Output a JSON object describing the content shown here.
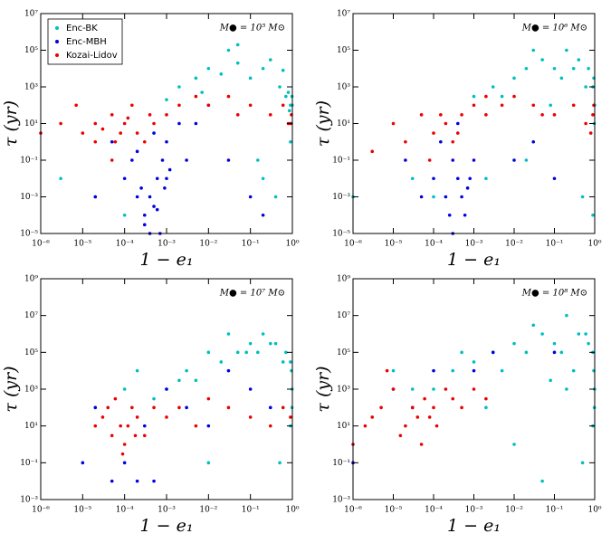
{
  "chart_data": [
    {
      "type": "scatter",
      "annotation": "M● = 10⁵ M⊙",
      "xlabel": "1 − e₁",
      "ylabel": "τ (yr)",
      "legend": "upper left",
      "xlim": [
        1e-06,
        1
      ],
      "ylim": [
        1e-05,
        10000000.0
      ],
      "xticks": [
        {
          "value": 1e-06,
          "label": "10⁻⁶"
        },
        {
          "value": 1e-05,
          "label": "10⁻⁵"
        },
        {
          "value": 0.0001,
          "label": "10⁻⁴"
        },
        {
          "value": 0.001,
          "label": "10⁻³"
        },
        {
          "value": 0.01,
          "label": "10⁻²"
        },
        {
          "value": 0.1,
          "label": "10⁻¹"
        },
        {
          "value": 1,
          "label": "10⁰"
        }
      ],
      "yticks": [
        {
          "value": 1e-05,
          "label": "10⁻⁵"
        },
        {
          "value": 0.001,
          "label": "10⁻³"
        },
        {
          "value": 0.1,
          "label": "10⁻¹"
        },
        {
          "value": 10,
          "label": "10¹"
        },
        {
          "value": 1000,
          "label": "10³"
        },
        {
          "value": 100000.0,
          "label": "10⁵"
        },
        {
          "value": 10000000.0,
          "label": "10⁷"
        }
      ],
      "series": [
        {
          "name": "Enc-BK",
          "color": "#00bfbf",
          "x": [
            0.002,
            0.005,
            0.01,
            0.02,
            0.05,
            0.1,
            0.2,
            0.5,
            0.8,
            0.9,
            0.001,
            0.03,
            0.3,
            0.6,
            0.05,
            0.007,
            0.15,
            0.4,
            0.95,
            0.7,
            3e-06,
            2e-05,
            0.0001,
            0.2,
            0.9,
            0.98,
            0.99,
            0.85
          ],
          "values": [
            1000.0,
            3000.0,
            10000.0,
            5000.0,
            20000.0,
            3000.0,
            10000.0,
            1000.0,
            500.0,
            100.0,
            200.0,
            100000.0,
            30000.0,
            8000.0,
            200000.0,
            500.0,
            0.1,
            0.001,
            10.0,
            300.0,
            0.01,
            0.001,
            0.0001,
            0.01,
            1,
            300.0,
            100.0,
            50.0
          ]
        },
        {
          "name": "Enc-MBH",
          "color": "#0000e0",
          "x": [
            0.0001,
            0.0002,
            0.0003,
            0.0004,
            0.0005,
            0.0006,
            0.0008,
            0.001,
            0.002,
            0.003,
            0.00015,
            0.00025,
            0.0007,
            0.0012,
            0.005,
            0.01,
            0.03,
            0.1,
            5e-05,
            2e-05,
            0.0004,
            0.0006,
            0.0009,
            0.0003,
            0.2,
            0.0002,
            0.0005,
            0.001
          ],
          "values": [
            0.01,
            0.001,
            0.0001,
            0.001,
            0.0003,
            0.01,
            0.1,
            1,
            10.0,
            0.1,
            0.1,
            0.003,
            1e-05,
            0.03,
            10.0,
            100.0,
            0.1,
            0.001,
            1,
            0.001,
            1e-05,
            0.0002,
            0.003,
            3e-05,
            0.0001,
            0.3,
            3,
            0.01
          ]
        },
        {
          "name": "Kozai-Lidov",
          "color": "#ee0000",
          "x": [
            1e-06,
            3e-06,
            1e-05,
            2e-05,
            5e-05,
            0.0001,
            0.0002,
            0.0003,
            0.0005,
            0.001,
            0.002,
            0.005,
            0.01,
            0.03,
            0.1,
            0.3,
            0.6,
            0.9,
            5e-05,
            8e-05,
            0.00015,
            0.0004,
            2e-05,
            7e-06,
            0.05,
            3e-05,
            6e-05,
            0.00012,
            0.95,
            0.8
          ],
          "values": [
            3,
            10,
            3,
            10,
            30,
            10,
            3,
            1,
            10,
            30,
            100,
            300,
            100,
            300,
            100,
            30,
            100,
            10,
            0.1,
            3,
            100,
            30,
            1,
            100,
            30,
            5,
            1,
            20,
            30,
            10
          ]
        }
      ]
    },
    {
      "type": "scatter",
      "annotation": "M● = 10⁶ M⊙",
      "xlabel": "1 − e₁",
      "ylabel": "τ (yr)",
      "xlim": [
        1e-06,
        1
      ],
      "ylim": [
        1e-05,
        10000000.0
      ],
      "xticks": [
        {
          "value": 1e-06,
          "label": "10⁻⁶"
        },
        {
          "value": 1e-05,
          "label": "10⁻⁵"
        },
        {
          "value": 0.0001,
          "label": "10⁻⁴"
        },
        {
          "value": 0.001,
          "label": "10⁻³"
        },
        {
          "value": 0.01,
          "label": "10⁻²"
        },
        {
          "value": 0.1,
          "label": "10⁻¹"
        },
        {
          "value": 1,
          "label": "10⁰"
        }
      ],
      "yticks": [
        {
          "value": 1e-05,
          "label": "10⁻⁵"
        },
        {
          "value": 0.001,
          "label": "10⁻³"
        },
        {
          "value": 0.1,
          "label": "10⁻¹"
        },
        {
          "value": 10,
          "label": "10¹"
        },
        {
          "value": 1000,
          "label": "10³"
        },
        {
          "value": 100000.0,
          "label": "10⁵"
        },
        {
          "value": 10000000.0,
          "label": "10⁷"
        }
      ],
      "series": [
        {
          "color": "#00bfbf",
          "x": [
            0.001,
            0.003,
            0.01,
            0.02,
            0.05,
            0.1,
            0.2,
            0.4,
            0.7,
            0.9,
            0.95,
            0.99,
            0.005,
            0.03,
            0.15,
            0.3,
            0.6,
            0.08,
            0.002,
            0.0001,
            3e-05,
            0.02,
            0.5,
            0.9,
            0.98,
            1e-06
          ],
          "values": [
            300.0,
            1000.0,
            3000.0,
            10000.0,
            30000.0,
            10000.0,
            100000.0,
            30000.0,
            10000.0,
            1000.0,
            3000.0,
            100,
            300.0,
            100000.0,
            3000.0,
            10000.0,
            1000.0,
            100.0,
            0.01,
            0.001,
            0.01,
            0.1,
            0.001,
            0.0001,
            10.0,
            0.001
          ]
        },
        {
          "color": "#0000e0",
          "x": [
            0.0001,
            0.0002,
            0.0003,
            0.0004,
            0.0005,
            0.0006,
            0.0008,
            0.001,
            0.00015,
            0.00025,
            0.0007,
            0.0003,
            5e-05,
            2e-05,
            0.01,
            0.03,
            0.1,
            0.0004
          ],
          "values": [
            0.01,
            0.001,
            0.1,
            0.01,
            0.001,
            0.0001,
            0.01,
            0.1,
            1,
            0.0001,
            0.003,
            1e-05,
            0.001,
            0.1,
            0.1,
            1,
            0.01,
            10.0
          ]
        },
        {
          "color": "#ee0000",
          "x": [
            1e-05,
            2e-05,
            5e-05,
            0.0001,
            0.0002,
            0.0003,
            0.0005,
            0.001,
            0.002,
            0.005,
            0.01,
            0.03,
            0.1,
            0.3,
            0.6,
            0.9,
            0.95,
            8e-05,
            0.00015,
            0.0004,
            3e-06,
            0.05,
            0.8,
            0.002
          ],
          "values": [
            10,
            1,
            30,
            3,
            10,
            1,
            30,
            100,
            30,
            100,
            300,
            100,
            30,
            100,
            10,
            30,
            100,
            0.1,
            30,
            3,
            0.3,
            30,
            3,
            300
          ]
        }
      ]
    },
    {
      "type": "scatter",
      "annotation": "M● = 10⁷ M⊙",
      "xlabel": "1 − e₁",
      "ylabel": "τ (yr)",
      "xlim": [
        1e-06,
        1
      ],
      "ylim": [
        0.001,
        1000000000.0
      ],
      "xticks": [
        {
          "value": 1e-06,
          "label": "10⁻⁶"
        },
        {
          "value": 1e-05,
          "label": "10⁻⁵"
        },
        {
          "value": 0.0001,
          "label": "10⁻⁴"
        },
        {
          "value": 0.001,
          "label": "10⁻³"
        },
        {
          "value": 0.01,
          "label": "10⁻²"
        },
        {
          "value": 0.1,
          "label": "10⁻¹"
        },
        {
          "value": 1,
          "label": "10⁰"
        }
      ],
      "yticks": [
        {
          "value": 0.001,
          "label": "10⁻³"
        },
        {
          "value": 0.1,
          "label": "10⁻¹"
        },
        {
          "value": 10,
          "label": "10¹"
        },
        {
          "value": 1000,
          "label": "10³"
        },
        {
          "value": 100000.0,
          "label": "10⁵"
        },
        {
          "value": 10000000.0,
          "label": "10⁷"
        },
        {
          "value": 1000000000.0,
          "label": "10⁹"
        }
      ],
      "series": [
        {
          "color": "#00bfbf",
          "x": [
            0.001,
            0.003,
            0.01,
            0.02,
            0.05,
            0.1,
            0.2,
            0.4,
            0.7,
            0.9,
            0.95,
            0.99,
            0.005,
            0.03,
            0.15,
            0.3,
            0.6,
            0.08,
            0.002,
            0.0005,
            0.0002,
            0.0001,
            0.5,
            0.9,
            0.98,
            0.01
          ],
          "values": [
            1000.0,
            10000.0,
            100000.0,
            30000.0,
            100000.0,
            300000.0,
            1000000.0,
            300000.0,
            100000.0,
            30000.0,
            10000.0,
            1000.0,
            3000.0,
            1000000.0,
            100000.0,
            300000.0,
            30000.0,
            100000.0,
            3000.0,
            300.0,
            10000.0,
            1000.0,
            0.1,
            10.0,
            100.0,
            0.1
          ]
        },
        {
          "color": "#0000e0",
          "x": [
            0.0001,
            0.0002,
            0.0003,
            5e-05,
            2e-05,
            0.001,
            0.003,
            0.01,
            0.03,
            0.1,
            0.3,
            1e-05,
            0.0005
          ],
          "values": [
            0.1,
            0.01,
            10.0,
            0.01,
            100.0,
            1000.0,
            100.0,
            10.0,
            10000.0,
            1000.0,
            100.0,
            0.1,
            0.01
          ]
        },
        {
          "color": "#ee0000",
          "x": [
            2e-05,
            3e-05,
            5e-05,
            8e-05,
            0.0001,
            0.00012,
            0.00015,
            0.0002,
            0.0003,
            0.0005,
            0.001,
            0.002,
            0.005,
            0.01,
            0.03,
            0.1,
            0.3,
            0.6,
            0.9,
            6e-05,
            9e-05,
            0.00018,
            4e-05
          ],
          "values": [
            10,
            30,
            3,
            10,
            1,
            10,
            100,
            30,
            3,
            100,
            30,
            100,
            10,
            300,
            100,
            30,
            10,
            100,
            30,
            300,
            0.3,
            3,
            100
          ]
        }
      ]
    },
    {
      "type": "scatter",
      "annotation": "M● = 10⁸ M⊙",
      "xlabel": "1 − e₁",
      "ylabel": "τ (yr)",
      "xlim": [
        1e-06,
        1
      ],
      "ylim": [
        0.001,
        1000000000.0
      ],
      "xticks": [
        {
          "value": 1e-06,
          "label": "10⁻⁶"
        },
        {
          "value": 1e-05,
          "label": "10⁻⁵"
        },
        {
          "value": 0.0001,
          "label": "10⁻⁴"
        },
        {
          "value": 0.001,
          "label": "10⁻³"
        },
        {
          "value": 0.01,
          "label": "10⁻²"
        },
        {
          "value": 0.1,
          "label": "10⁻¹"
        },
        {
          "value": 1,
          "label": "10⁰"
        }
      ],
      "yticks": [
        {
          "value": 0.001,
          "label": "10⁻³"
        },
        {
          "value": 0.1,
          "label": "10⁻¹"
        },
        {
          "value": 10,
          "label": "10¹"
        },
        {
          "value": 1000,
          "label": "10³"
        },
        {
          "value": 100000.0,
          "label": "10⁵"
        },
        {
          "value": 10000000.0,
          "label": "10⁷"
        },
        {
          "value": 1000000000.0,
          "label": "10⁹"
        }
      ],
      "series": [
        {
          "color": "#00bfbf",
          "x": [
            0.0001,
            0.0003,
            0.001,
            0.003,
            0.01,
            0.02,
            0.05,
            0.1,
            0.2,
            0.4,
            0.7,
            0.9,
            0.95,
            0.99,
            0.005,
            0.03,
            0.15,
            0.3,
            0.6,
            0.08,
            0.002,
            0.0005,
            0.5,
            0.9,
            0.98,
            0.01,
            0.05,
            0.2,
            3e-05,
            1e-05
          ],
          "values": [
            1000.0,
            10000.0,
            30000.0,
            100000.0,
            300000.0,
            100000.0,
            1000000.0,
            300000.0,
            10000000.0,
            1000000.0,
            300000.0,
            100000.0,
            10000.0,
            1000.0,
            10000.0,
            3000000.0,
            100000.0,
            10000.0,
            1000000.0,
            3000.0,
            100.0,
            100000.0,
            0.1,
            10.0,
            100.0,
            1.0,
            0.01,
            1000.0,
            1000.0,
            10000.0
          ]
        },
        {
          "color": "#0000e0",
          "x": [
            1e-06,
            1e-05,
            3e-05,
            0.0001,
            0.001,
            0.003,
            0.1
          ],
          "values": [
            0.1,
            1000.0,
            100.0,
            10000.0,
            10000.0,
            100000.0,
            100000.0
          ]
        },
        {
          "color": "#ee0000",
          "x": [
            1e-06,
            2e-06,
            5e-06,
            1e-05,
            2e-05,
            3e-05,
            5e-05,
            8e-05,
            0.0001,
            0.0002,
            0.0003,
            0.0005,
            0.001,
            1.5e-05,
            4e-05,
            6e-05,
            0.00012,
            7e-06,
            3e-06,
            0.002
          ],
          "values": [
            1,
            10,
            100,
            1000,
            10,
            100,
            1,
            30,
            100,
            1000,
            300,
            100,
            1000,
            3,
            30,
            300,
            10,
            10000.0,
            30,
            300
          ]
        }
      ]
    }
  ]
}
